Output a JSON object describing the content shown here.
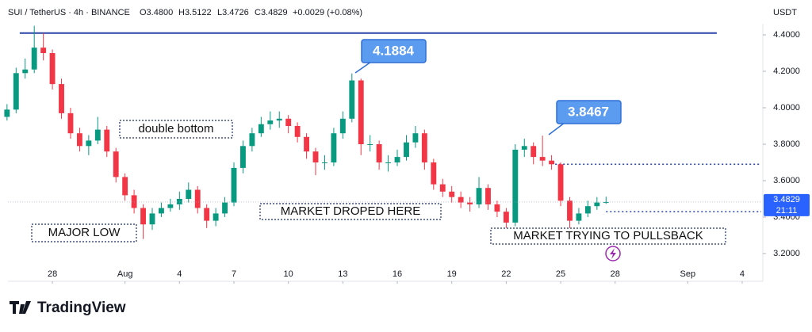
{
  "header": {
    "symbol": "SUI / TetherUS · 4h · BINANCE",
    "ohlc": [
      "O3.4800",
      "H3.5122",
      "L3.4726",
      "C3.4829"
    ],
    "change": "+0.0029 (+0.08%)"
  },
  "chart_data": {
    "type": "candlestick",
    "ylabel": "USDT",
    "countdown": "21:11",
    "up_color": "#089981",
    "down_color": "#f23645",
    "x": [
      25.5,
      26,
      26.5,
      27,
      27.5,
      28,
      28.5,
      29,
      29.5,
      30,
      30.5,
      31,
      31.5,
      32,
      32.5,
      33,
      33.5,
      34,
      34.5,
      35,
      35.5,
      36,
      36.5,
      37,
      37.5,
      38,
      38.5,
      39,
      39.5,
      40,
      40.5,
      41,
      41.5,
      42,
      42.5,
      43,
      43.5,
      44,
      44.5,
      45,
      45.5,
      46,
      46.5,
      47,
      47.5,
      48,
      48.5,
      49,
      49.5,
      50,
      50.5,
      51,
      51.5,
      52,
      52.5,
      53,
      53.5,
      54,
      54.5,
      55,
      55.5,
      56,
      56.5,
      57,
      57.5,
      58,
      58.5
    ],
    "open": [
      3.95,
      3.99,
      4.19,
      4.21,
      4.33,
      4.3,
      4.13,
      3.97,
      3.86,
      3.79,
      3.82,
      3.88,
      3.76,
      3.62,
      3.52,
      3.45,
      3.36,
      3.42,
      3.45,
      3.47,
      3.5,
      3.55,
      3.45,
      3.38,
      3.42,
      3.48,
      3.67,
      3.79,
      3.86,
      3.91,
      3.93,
      3.94,
      3.9,
      3.84,
      3.76,
      3.7,
      3.7,
      3.86,
      3.94,
      4.15,
      3.8,
      3.8,
      3.7,
      3.7,
      3.73,
      3.81,
      3.86,
      3.7,
      3.58,
      3.54,
      3.51,
      3.48,
      3.47,
      3.56,
      3.47,
      3.43,
      3.37,
      3.77,
      3.79,
      3.73,
      3.71,
      3.69,
      3.49,
      3.38,
      3.42,
      3.46,
      3.48
    ],
    "high": [
      4.02,
      4.22,
      4.27,
      4.45,
      4.41,
      4.32,
      4.16,
      4.0,
      3.89,
      3.85,
      3.95,
      3.9,
      3.78,
      3.64,
      3.55,
      3.47,
      3.45,
      3.48,
      3.5,
      3.54,
      3.59,
      3.57,
      3.47,
      3.45,
      3.51,
      3.7,
      3.82,
      3.89,
      3.95,
      3.98,
      3.98,
      3.96,
      3.92,
      3.86,
      3.78,
      3.74,
      3.89,
      3.98,
      4.1884,
      4.16,
      3.85,
      3.82,
      3.74,
      3.77,
      3.85,
      3.9,
      3.88,
      3.72,
      3.61,
      3.57,
      3.54,
      3.51,
      3.62,
      3.58,
      3.49,
      3.45,
      3.8,
      3.83,
      3.81,
      3.8467,
      3.74,
      3.7,
      3.51,
      3.45,
      3.49,
      3.51,
      3.5122
    ],
    "low": [
      3.93,
      3.97,
      4.16,
      4.19,
      4.26,
      4.1,
      3.94,
      3.83,
      3.76,
      3.74,
      3.8,
      3.73,
      3.59,
      3.49,
      3.42,
      3.28,
      3.33,
      3.4,
      3.43,
      3.44,
      3.48,
      3.42,
      3.34,
      3.35,
      3.4,
      3.46,
      3.64,
      3.76,
      3.84,
      3.88,
      3.89,
      3.86,
      3.81,
      3.72,
      3.63,
      3.66,
      3.68,
      3.83,
      3.92,
      3.74,
      3.76,
      3.66,
      3.65,
      3.68,
      3.71,
      3.78,
      3.66,
      3.55,
      3.51,
      3.48,
      3.45,
      3.43,
      3.45,
      3.44,
      3.4,
      3.34,
      3.35,
      3.73,
      3.69,
      3.68,
      3.66,
      3.46,
      3.34,
      3.36,
      3.4,
      3.44,
      3.4726
    ],
    "close": [
      3.99,
      4.19,
      4.21,
      4.33,
      4.3,
      4.13,
      3.97,
      3.86,
      3.79,
      3.82,
      3.88,
      3.76,
      3.62,
      3.52,
      3.45,
      3.36,
      3.42,
      3.45,
      3.47,
      3.5,
      3.55,
      3.45,
      3.38,
      3.42,
      3.48,
      3.67,
      3.79,
      3.86,
      3.91,
      3.93,
      3.94,
      3.9,
      3.84,
      3.76,
      3.7,
      3.7,
      3.86,
      3.94,
      4.15,
      3.8,
      3.8,
      3.7,
      3.7,
      3.73,
      3.81,
      3.86,
      3.7,
      3.58,
      3.54,
      3.51,
      3.48,
      3.47,
      3.56,
      3.47,
      3.43,
      3.37,
      3.77,
      3.79,
      3.73,
      3.71,
      3.69,
      3.49,
      3.38,
      3.42,
      3.46,
      3.48,
      3.4829
    ],
    "xlim": [
      25.55,
      67.05
    ],
    "xticks": [
      {
        "value": 28,
        "label": "28"
      },
      {
        "value": 32,
        "label": "Aug"
      },
      {
        "value": 35,
        "label": "4"
      },
      {
        "value": 38,
        "label": "7"
      },
      {
        "value": 41,
        "label": "10"
      },
      {
        "value": 44,
        "label": "13"
      },
      {
        "value": 47,
        "label": "16"
      },
      {
        "value": 50,
        "label": "19"
      },
      {
        "value": 53,
        "label": "22"
      },
      {
        "value": 56,
        "label": "25"
      },
      {
        "value": 59,
        "label": "28"
      },
      {
        "value": 63,
        "label": "Sep"
      },
      {
        "value": 66,
        "label": "4"
      }
    ],
    "ylim": [
      3.05,
      4.55
    ],
    "yticks": [
      {
        "value": 3.2,
        "label": "3.2000"
      },
      {
        "value": 3.4,
        "label": "3.4000"
      },
      {
        "value": 3.6,
        "label": "3.6000"
      },
      {
        "value": 3.8,
        "label": "3.8000"
      },
      {
        "value": 4.0,
        "label": "4.0000"
      },
      {
        "value": 4.2,
        "label": "4.2000"
      },
      {
        "value": 4.4,
        "label": "4.4000"
      }
    ],
    "grid": false,
    "hlines": [
      {
        "value": 4.41,
        "x": [
          26.2,
          64.6
        ],
        "color": "#2b44a8",
        "dashed": false
      },
      {
        "value": 3.69,
        "x": [
          55.7,
          67.05
        ],
        "color": "#2b44a8",
        "dashed": true
      },
      {
        "value": 3.43,
        "x": [
          58.5,
          67.05
        ],
        "color": "#2b44a8",
        "dashed": true
      }
    ],
    "annotations": [
      "double bottom",
      "MAJOR LOW",
      "MARKET DROPED HERE",
      "MARKET TRYING TO PULLSBACK"
    ]
  },
  "footer": {
    "brand": "TradingView"
  }
}
